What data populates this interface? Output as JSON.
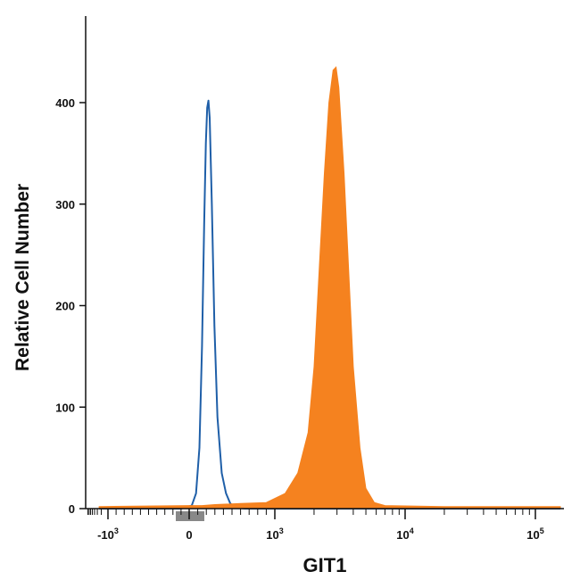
{
  "chart_data": {
    "type": "area",
    "title": "",
    "xlabel": "GIT1",
    "ylabel": "Relative Cell Number",
    "xscale": "biexponential",
    "ylim": [
      0,
      440
    ],
    "grid": false,
    "colors": {
      "blue": "#1f5fa8",
      "orange": "#f5821f",
      "axis": "#111111",
      "zero_marker": "#888888"
    },
    "y_ticks": [
      {
        "value": 0,
        "label": "0"
      },
      {
        "value": 100,
        "label": "100"
      },
      {
        "value": 200,
        "label": "200"
      },
      {
        "value": 300,
        "label": "300"
      },
      {
        "value": 400,
        "label": "400"
      }
    ],
    "x_ticks": [
      {
        "value": -1000,
        "label": "-10",
        "sup": "3"
      },
      {
        "value": 0,
        "label": "0",
        "sup": ""
      },
      {
        "value": 1000,
        "label": "10",
        "sup": "3"
      },
      {
        "value": 10000,
        "label": "10",
        "sup": "4"
      },
      {
        "value": 100000,
        "label": "10",
        "sup": "5"
      }
    ],
    "series": [
      {
        "style": "outline",
        "color": "#1f5fa8",
        "points": [
          [
            -2500,
            0
          ],
          [
            -100,
            0
          ],
          [
            30,
            3
          ],
          [
            80,
            15
          ],
          [
            120,
            60
          ],
          [
            150,
            160
          ],
          [
            175,
            280
          ],
          [
            195,
            360
          ],
          [
            210,
            395
          ],
          [
            225,
            402
          ],
          [
            240,
            385
          ],
          [
            265,
            300
          ],
          [
            295,
            180
          ],
          [
            330,
            90
          ],
          [
            380,
            35
          ],
          [
            430,
            15
          ],
          [
            480,
            5
          ],
          [
            550,
            1
          ],
          [
            650,
            0
          ],
          [
            250000,
            0
          ]
        ]
      },
      {
        "style": "filled",
        "color": "#f5821f",
        "points": [
          [
            -2500,
            2
          ],
          [
            0,
            3
          ],
          [
            150,
            3
          ],
          [
            300,
            4
          ],
          [
            600,
            5
          ],
          [
            900,
            6
          ],
          [
            1200,
            15
          ],
          [
            1500,
            35
          ],
          [
            1800,
            75
          ],
          [
            2000,
            140
          ],
          [
            2200,
            240
          ],
          [
            2400,
            330
          ],
          [
            2600,
            400
          ],
          [
            2800,
            432
          ],
          [
            2950,
            435
          ],
          [
            3100,
            415
          ],
          [
            3400,
            330
          ],
          [
            3700,
            230
          ],
          [
            4000,
            140
          ],
          [
            4500,
            60
          ],
          [
            5000,
            20
          ],
          [
            5800,
            6
          ],
          [
            7000,
            3
          ],
          [
            20000,
            2
          ],
          [
            250000,
            2
          ]
        ]
      }
    ]
  }
}
